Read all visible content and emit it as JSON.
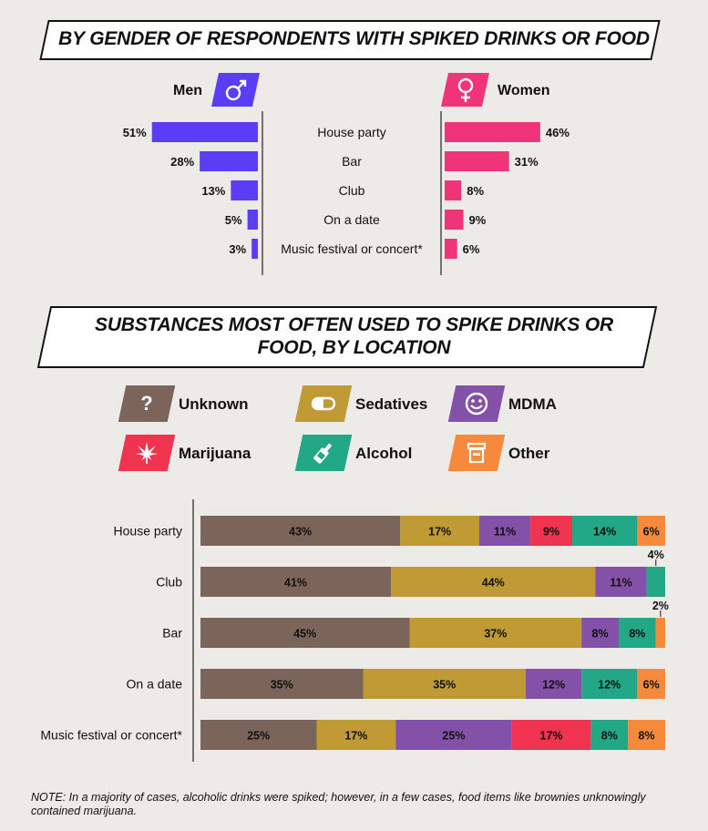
{
  "gender_chart": {
    "title": "BY GENDER OF RESPONDENTS WITH SPIKED DRINKS OR FOOD",
    "men_label": "Men",
    "women_label": "Women",
    "men_icon": "male-symbol-icon",
    "women_icon": "female-symbol-icon",
    "men_color": "#5b3df5",
    "women_color": "#f0347a"
  },
  "substance_chart": {
    "title_line1": "SUBSTANCES MOST OFTEN USED TO SPIKE DRINKS OR",
    "title_line2": "FOOD, BY LOCATION"
  },
  "legend": [
    {
      "label": "Unknown",
      "icon": "question-mark-icon",
      "color": "#7b6459"
    },
    {
      "label": "Sedatives",
      "icon": "pill-capsule-icon",
      "color": "#bf9a35"
    },
    {
      "label": "MDMA",
      "icon": "smiley-face-icon",
      "color": "#8451a9"
    },
    {
      "label": "Marijuana",
      "icon": "cannabis-leaf-icon",
      "color": "#f0334e"
    },
    {
      "label": "Alcohol",
      "icon": "bottle-icon",
      "color": "#22a886"
    },
    {
      "label": "Other",
      "icon": "container-icon",
      "color": "#f58a3c"
    }
  ],
  "chart_data": [
    {
      "type": "bar",
      "orientation": "horizontal-butterfly",
      "title": "BY GENDER OF RESPONDENTS WITH SPIKED DRINKS OR FOOD",
      "categories": [
        "House party",
        "Bar",
        "Club",
        "On a date",
        "Music festival or concert*"
      ],
      "series": [
        {
          "name": "Men",
          "values": [
            51,
            28,
            13,
            5,
            3
          ],
          "value_labels": [
            "51%",
            "28%",
            "13%",
            "5%",
            "3%"
          ]
        },
        {
          "name": "Women",
          "values": [
            46,
            31,
            8,
            9,
            6
          ],
          "value_labels": [
            "46%",
            "31%",
            "8%",
            "9%",
            "6%"
          ]
        }
      ],
      "unit": "%"
    },
    {
      "type": "bar",
      "orientation": "horizontal-stacked-100",
      "title": "SUBSTANCES MOST OFTEN USED TO SPIKE DRINKS OR FOOD, BY LOCATION",
      "categories": [
        "House party",
        "Club",
        "Bar",
        "On a date",
        "Music festival or concert*"
      ],
      "series": [
        {
          "name": "Unknown",
          "values": [
            43,
            41,
            45,
            35,
            25
          ]
        },
        {
          "name": "Sedatives",
          "values": [
            17,
            44,
            37,
            35,
            17
          ]
        },
        {
          "name": "MDMA",
          "values": [
            11,
            11,
            8,
            12,
            25
          ]
        },
        {
          "name": "Marijuana",
          "values": [
            9,
            0,
            0,
            0,
            17
          ]
        },
        {
          "name": "Alcohol",
          "values": [
            14,
            4,
            8,
            12,
            8
          ]
        },
        {
          "name": "Other",
          "values": [
            6,
            0,
            2,
            6,
            8
          ]
        }
      ],
      "unit": "%"
    }
  ],
  "note": "NOTE: In a majority of cases, alcoholic drinks were spiked; however, in a few cases, food items like brownies unknowingly contained marijuana."
}
